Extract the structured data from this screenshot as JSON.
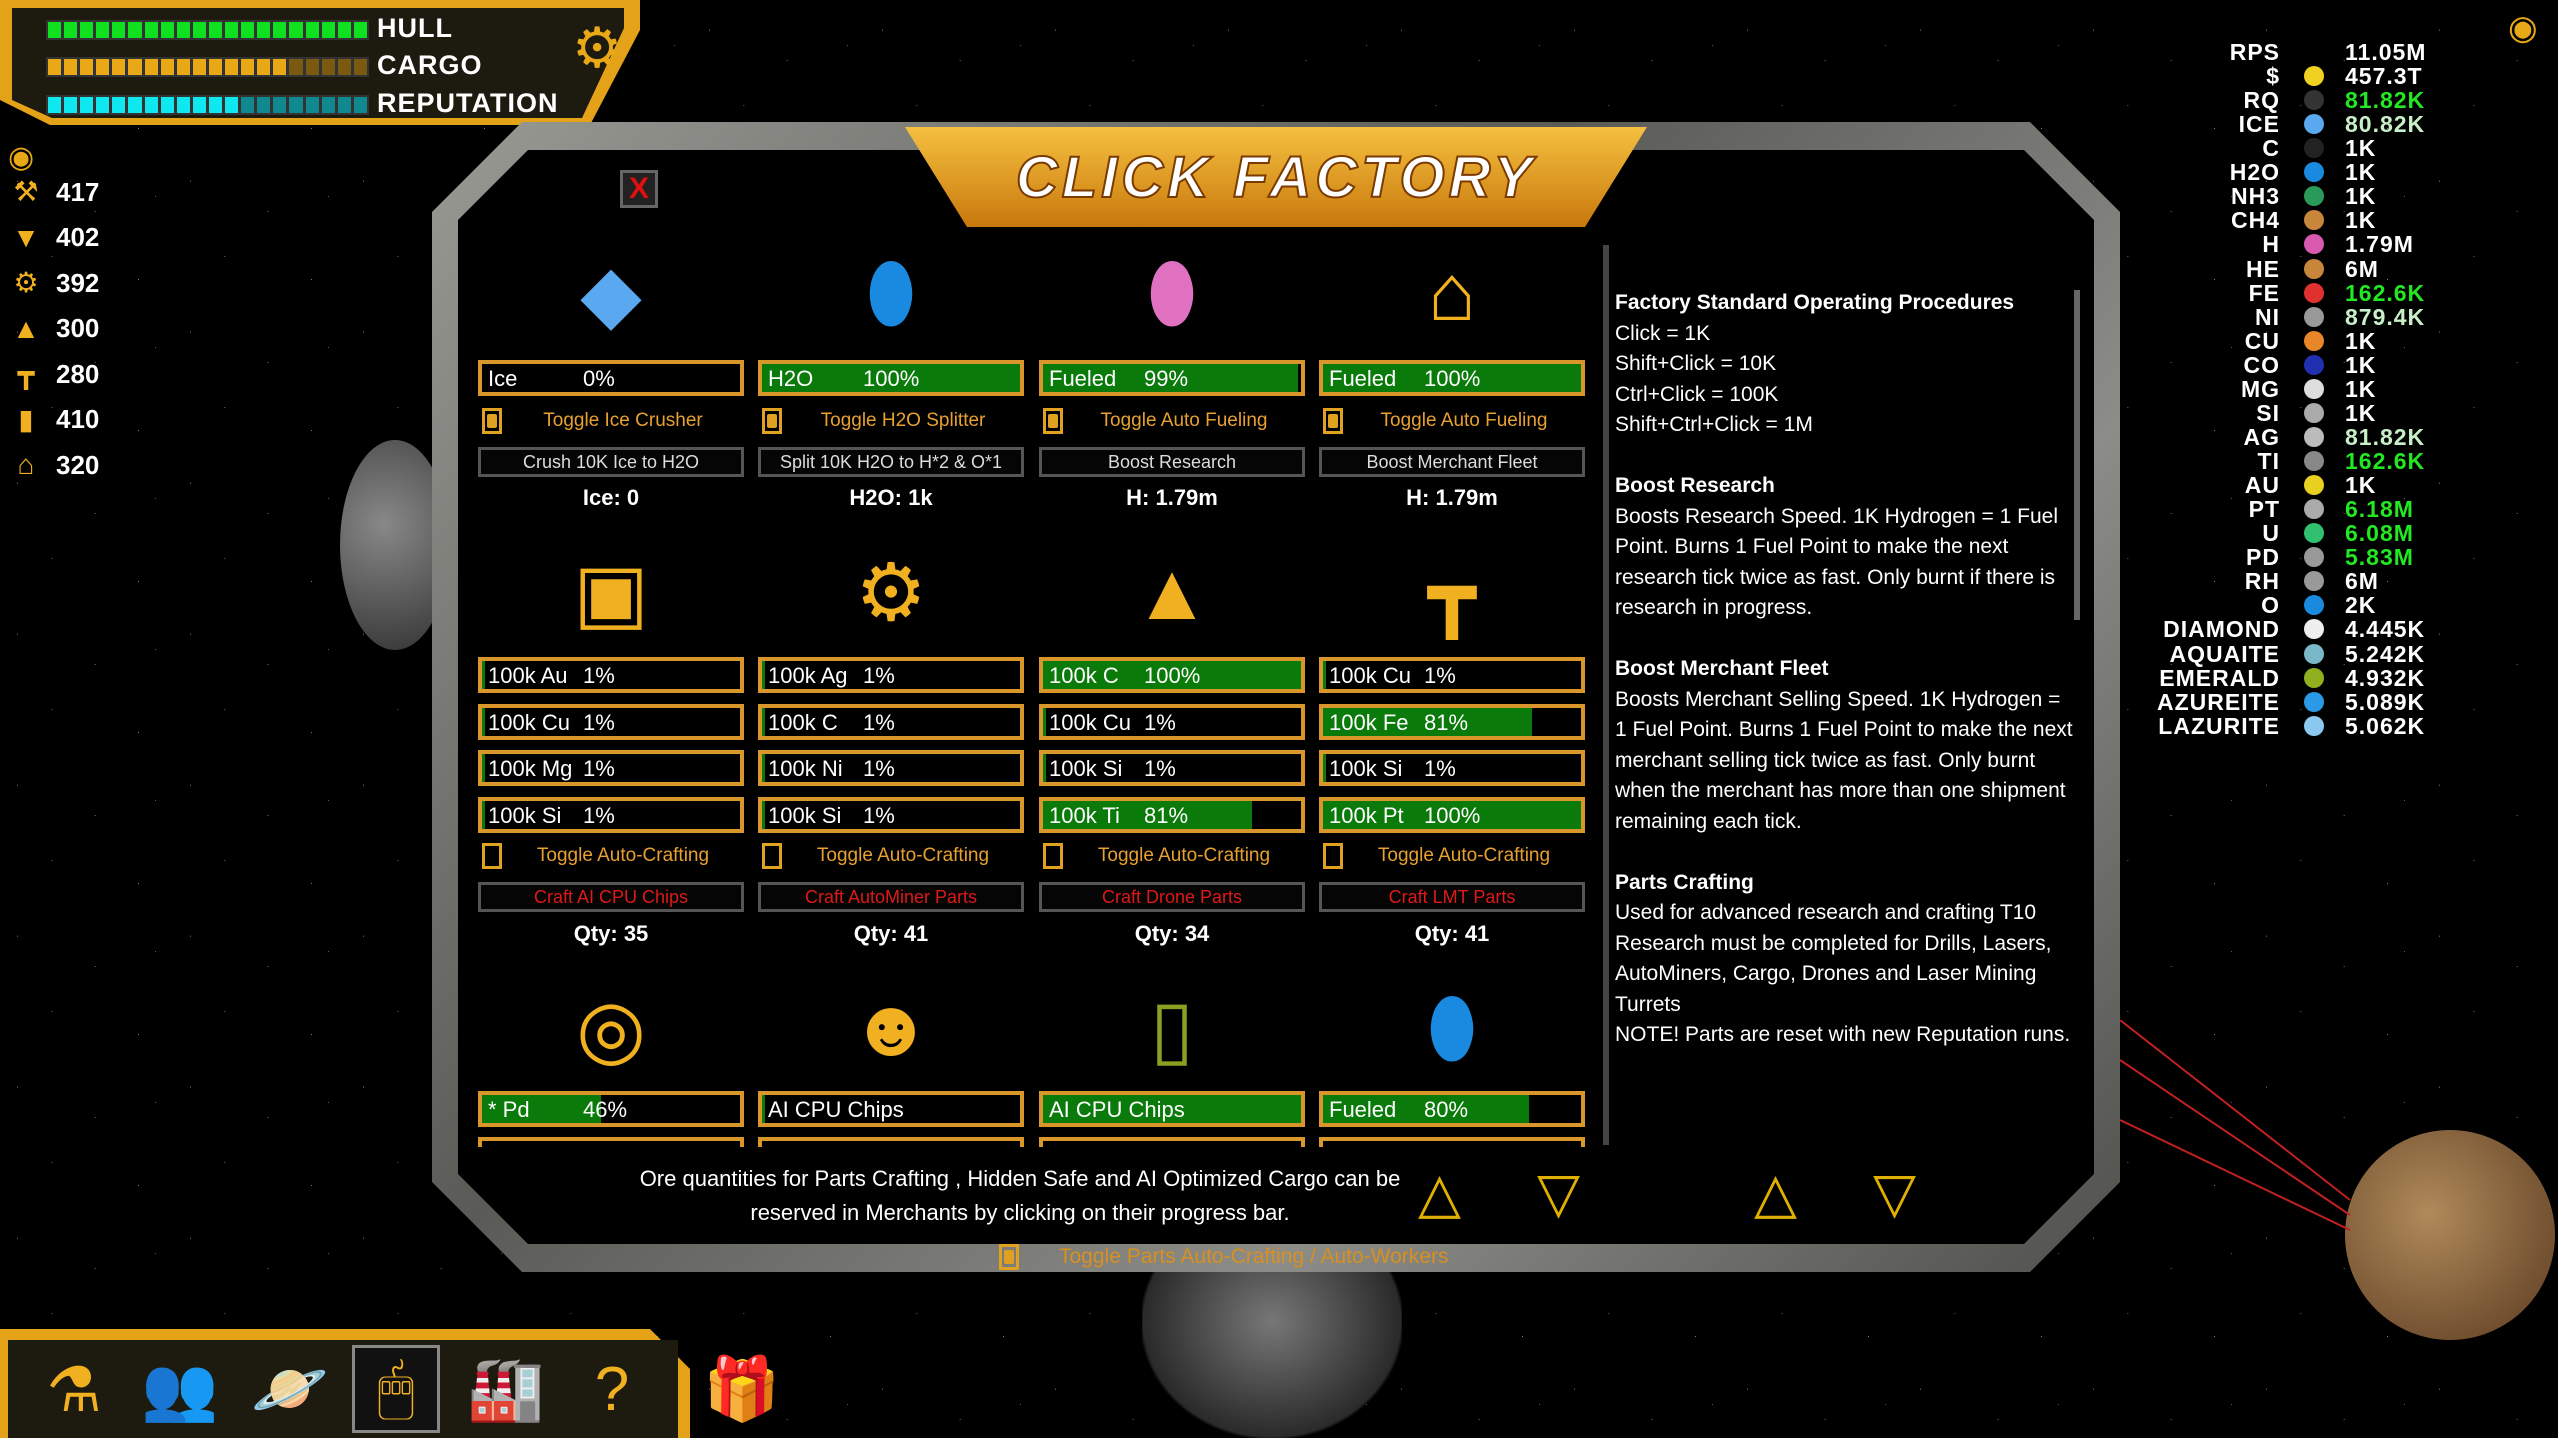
{
  "hud": {
    "bars": [
      {
        "label": "HULL",
        "fill_fraction": 1.0,
        "color": "#10e020",
        "dim": "#0a6010"
      },
      {
        "label": "CARGO",
        "fill_fraction": 0.75,
        "color": "#e8a818",
        "dim": "#7a5a10"
      },
      {
        "label": "REPUTATION",
        "fill_fraction": 0.6,
        "color": "#10e8f0",
        "dim": "#108890"
      }
    ],
    "settings_icon": "gear-icon"
  },
  "left_stats": [
    {
      "icon": "drill",
      "value": "417"
    },
    {
      "icon": "laser",
      "value": "402"
    },
    {
      "icon": "autominer",
      "value": "392"
    },
    {
      "icon": "drone",
      "value": "300"
    },
    {
      "icon": "laser-turret",
      "value": "280"
    },
    {
      "icon": "cargo",
      "value": "410"
    },
    {
      "icon": "merchant",
      "value": "320"
    }
  ],
  "factory": {
    "title": "CLICK FACTORY",
    "close": "X",
    "row1": [
      {
        "icon": "ice-crystal",
        "bar": {
          "label": "Ice",
          "pct": "0%",
          "fill": 0
        },
        "toggle": "Toggle Ice Crusher",
        "checked": true,
        "button": "Crush 10K Ice to H2O",
        "status": "Ice: 0"
      },
      {
        "icon": "h2o-canister",
        "bar": {
          "label": "H2O",
          "pct": "100%",
          "fill": 100
        },
        "toggle": "Toggle H2O Splitter",
        "checked": true,
        "button": "Split 10K H2O to H*2 & O*1",
        "status": "H2O: 1k"
      },
      {
        "icon": "hydrogen-canister",
        "bar": {
          "label": "Fueled",
          "pct": "99%",
          "fill": 99
        },
        "toggle": "Toggle Auto Fueling",
        "checked": true,
        "button": "Boost Research",
        "status": "H: 1.79m"
      },
      {
        "icon": "merchant-stall",
        "bar": {
          "label": "Fueled",
          "pct": "100%",
          "fill": 100
        },
        "toggle": "Toggle Auto Fueling",
        "checked": true,
        "button": "Boost Merchant Fleet",
        "status": "H: 1.79m"
      }
    ],
    "row2": [
      {
        "icon": "ai-chip",
        "bars": [
          {
            "label": "100k Au",
            "pct": "1%",
            "fill": 1
          },
          {
            "label": "100k Cu",
            "pct": "1%",
            "fill": 1
          },
          {
            "label": "100k Mg",
            "pct": "1%",
            "fill": 1
          },
          {
            "label": "100k Si",
            "pct": "1%",
            "fill": 1
          }
        ],
        "toggle": "Toggle Auto-Crafting",
        "checked": false,
        "button": "Craft AI CPU Chips",
        "status": "Qty: 35"
      },
      {
        "icon": "autominer",
        "bars": [
          {
            "label": "100k Ag",
            "pct": "1%",
            "fill": 1
          },
          {
            "label": "100k C",
            "pct": "1%",
            "fill": 1
          },
          {
            "label": "100k Ni",
            "pct": "1%",
            "fill": 1
          },
          {
            "label": "100k Si",
            "pct": "1%",
            "fill": 1
          }
        ],
        "toggle": "Toggle Auto-Crafting",
        "checked": false,
        "button": "Craft AutoMiner Parts",
        "status": "Qty: 41"
      },
      {
        "icon": "drone",
        "bars": [
          {
            "label": "100k C",
            "pct": "100%",
            "fill": 100
          },
          {
            "label": "100k Cu",
            "pct": "1%",
            "fill": 1
          },
          {
            "label": "100k Si",
            "pct": "1%",
            "fill": 1
          },
          {
            "label": "100k Ti",
            "pct": "81%",
            "fill": 81
          }
        ],
        "toggle": "Toggle Auto-Crafting",
        "checked": false,
        "button": "Craft Drone Parts",
        "status": "Qty: 34"
      },
      {
        "icon": "laser-turret",
        "bars": [
          {
            "label": "100k Cu",
            "pct": "1%",
            "fill": 1
          },
          {
            "label": "100k  Fe",
            "pct": "81%",
            "fill": 81
          },
          {
            "label": "100k Si",
            "pct": "1%",
            "fill": 1
          },
          {
            "label": "100k Pt",
            "pct": "100%",
            "fill": 100
          }
        ],
        "toggle": "Toggle Auto-Crafting",
        "checked": false,
        "button": "Craft LMT Parts",
        "status": "Qty: 41"
      }
    ],
    "row3": [
      {
        "icon": "safe",
        "bar": {
          "label": "* Pd",
          "pct": "46%",
          "fill": 46
        }
      },
      {
        "icon": "robot",
        "bar": {
          "label": "AI CPU Chips",
          "pct": "",
          "fill": 1
        }
      },
      {
        "icon": "cargo-door",
        "bar": {
          "label": "AI CPU Chips",
          "pct": "",
          "fill": 100
        }
      },
      {
        "icon": "h2o-canister",
        "bar": {
          "label": "Fueled",
          "pct": "80%",
          "fill": 80
        }
      }
    ],
    "info": [
      {
        "title": "Factory Standard Operating Procedures",
        "lines": [
          "Click = 1K",
          "Shift+Click = 10K",
          "Ctrl+Click = 100K",
          "Shift+Ctrl+Click = 1M"
        ]
      },
      {
        "title": "Boost Research",
        "lines": [
          "Boosts Research Speed. 1K Hydrogen = 1 Fuel Point. Burns 1 Fuel Point to make the next research tick twice as fast. Only burnt if there is research in progress."
        ]
      },
      {
        "title": "Boost Merchant Fleet",
        "lines": [
          "Boosts Merchant Selling Speed. 1K Hydrogen = 1 Fuel Point. Burns 1 Fuel Point to make the next merchant selling tick twice as fast. Only burnt when the merchant has more than one shipment remaining each tick."
        ]
      },
      {
        "title": "Parts Crafting",
        "lines": [
          "Used for advanced research and crafting T10 Research must be completed for Drills, Lasers, AutoMiners, Cargo, Drones and Laser Mining Turrets",
          "NOTE! Parts are reset with new Reputation runs."
        ]
      }
    ],
    "note": "Ore quantities for Parts Crafting , Hidden Safe and AI Optimized Cargo can be reserved in Merchants by clicking on their progress bar.",
    "parts_toggle": "Toggle Parts Auto-Crafting / Auto-Workers"
  },
  "toolbar": [
    {
      "icon": "flask",
      "glyph": "⚗"
    },
    {
      "icon": "crew",
      "glyph": "👥"
    },
    {
      "icon": "planet",
      "glyph": "🪐"
    },
    {
      "icon": "mouse",
      "glyph": "🖱",
      "selected": true
    },
    {
      "icon": "factory",
      "glyph": "🏭"
    },
    {
      "icon": "help-book",
      "glyph": "?"
    },
    {
      "icon": "gift",
      "glyph": "🎁"
    }
  ],
  "resources": [
    {
      "name": "RPS",
      "value": "11.05M",
      "color": "#ffffff"
    },
    {
      "name": "$",
      "value": "457.3T",
      "color": "#ffffff",
      "dot": "#f0d020"
    },
    {
      "name": "RQ",
      "value": "81.82K",
      "color": "#22e822",
      "dot": "#333"
    },
    {
      "name": "ICE",
      "value": "80.82K",
      "color": "#c8f0c8",
      "dot": "#5aa8f0"
    },
    {
      "name": "C",
      "value": "1K",
      "color": "#ffffff",
      "dot": "#222"
    },
    {
      "name": "H2O",
      "value": "1K",
      "color": "#ffffff",
      "dot": "#1a8ae0"
    },
    {
      "name": "NH3",
      "value": "1K",
      "color": "#ffffff",
      "dot": "#2a9a5a"
    },
    {
      "name": "CH4",
      "value": "1K",
      "color": "#ffffff",
      "dot": "#c8863a"
    },
    {
      "name": "H",
      "value": "1.79M",
      "color": "#ffffff",
      "dot": "#d85ab0"
    },
    {
      "name": "HE",
      "value": "6M",
      "color": "#ffffff",
      "dot": "#c8863a"
    },
    {
      "name": "FE",
      "value": "162.6K",
      "color": "#22e822",
      "dot": "#e03030"
    },
    {
      "name": "NI",
      "value": "879.4K",
      "color": "#c8f0c8",
      "dot": "#999"
    },
    {
      "name": "CU",
      "value": "1K",
      "color": "#ffffff",
      "dot": "#e8862a"
    },
    {
      "name": "CO",
      "value": "1K",
      "color": "#ffffff",
      "dot": "#2030b0"
    },
    {
      "name": "MG",
      "value": "1K",
      "color": "#ffffff",
      "dot": "#ddd"
    },
    {
      "name": "SI",
      "value": "1K",
      "color": "#ffffff",
      "dot": "#aaa"
    },
    {
      "name": "AG",
      "value": "81.82K",
      "color": "#c8f0c8",
      "dot": "#bbb"
    },
    {
      "name": "TI",
      "value": "162.6K",
      "color": "#22e822",
      "dot": "#888"
    },
    {
      "name": "AU",
      "value": "1K",
      "color": "#ffffff",
      "dot": "#e8d020"
    },
    {
      "name": "PT",
      "value": "6.18M",
      "color": "#22e822",
      "dot": "#aaa"
    },
    {
      "name": "U",
      "value": "6.08M",
      "color": "#22e822",
      "dot": "#30c070"
    },
    {
      "name": "PD",
      "value": "5.83M",
      "color": "#22e822",
      "dot": "#999"
    },
    {
      "name": "RH",
      "value": "6M",
      "color": "#ffffff",
      "dot": "#999"
    },
    {
      "name": "O",
      "value": "2K",
      "color": "#ffffff",
      "dot": "#1a8ae0"
    },
    {
      "name": "DIAMOND",
      "value": "4.445K",
      "color": "#ffffff",
      "dot": "#eee"
    },
    {
      "name": "AQUAITE",
      "value": "5.242K",
      "color": "#ffffff",
      "dot": "#7ab8c8"
    },
    {
      "name": "EMERALD",
      "value": "4.932K",
      "color": "#ffffff",
      "dot": "#90b020"
    },
    {
      "name": "AZUREITE",
      "value": "5.089K",
      "color": "#ffffff",
      "dot": "#2a9ae8"
    },
    {
      "name": "LAZURITE",
      "value": "5.062K",
      "color": "#ffffff",
      "dot": "#8ac8f0"
    }
  ]
}
